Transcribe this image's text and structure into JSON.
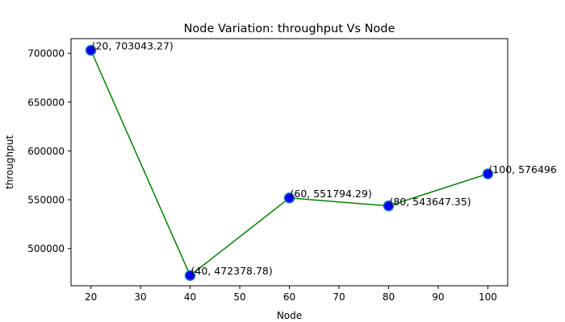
{
  "chart_data": {
    "type": "line",
    "title": "Node Variation: throughput Vs Node",
    "xlabel": "Node",
    "ylabel": "throughput",
    "x": [
      20,
      40,
      60,
      80,
      100
    ],
    "series": [
      {
        "values": [
          703043.27,
          472378.78,
          551794.29,
          543647.35,
          576496
        ],
        "point_labels": [
          "(20, 703043.27)",
          "(40, 472378.78)",
          "(60, 551794.29)",
          "(80, 543647.35)",
          "(100, 576496"
        ],
        "line_color": "#008000",
        "marker_face_color": "#0000ff",
        "marker_edge_color": "#1f77b4"
      }
    ],
    "xlim": [
      16,
      104
    ],
    "ylim": [
      461850,
      715000
    ],
    "x_ticks": [
      20,
      30,
      40,
      50,
      60,
      70,
      80,
      90,
      100
    ],
    "x_tick_labels": [
      "20",
      "30",
      "40",
      "50",
      "60",
      "70",
      "80",
      "90",
      "100"
    ],
    "y_ticks": [
      500000,
      550000,
      600000,
      650000,
      700000
    ],
    "y_tick_labels": [
      "500000",
      "550000",
      "600000",
      "650000",
      "700000"
    ],
    "grid": false,
    "legend": "none"
  }
}
